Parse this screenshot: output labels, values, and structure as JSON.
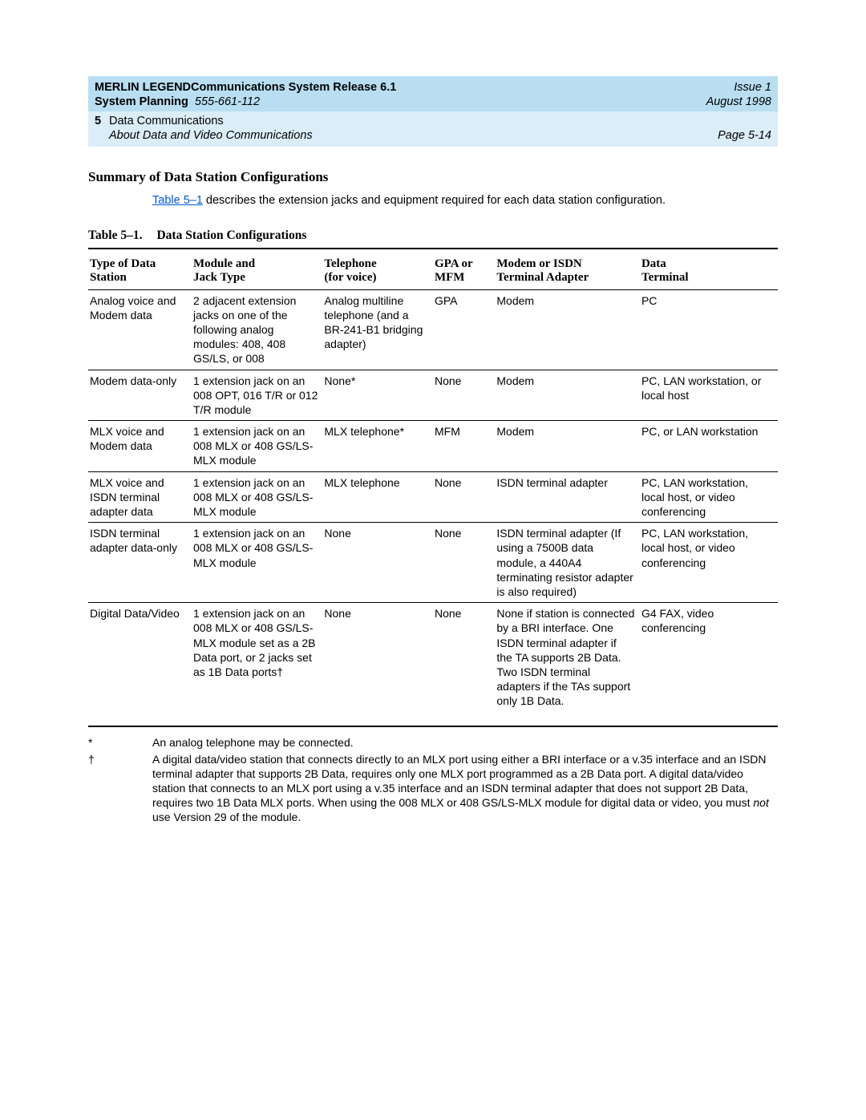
{
  "header": {
    "product_line_left": "MERLIN LEGENDCommunications System Release 6.1",
    "issue": "Issue 1",
    "system_planning": "System Planning",
    "doc_number": "555-661-112",
    "date": "August 1998"
  },
  "subheader": {
    "chapter_num": "5",
    "chapter_title": "Data Communications",
    "about": "About Data and Video Communications",
    "page": "Page 5-14"
  },
  "section_title": "Summary of Data Station Configurations",
  "intro": {
    "link_text": "Table 5–1",
    "rest": " describes the extension jacks and equipment required for each data station configuration."
  },
  "table_caption": {
    "num": "Table 5–1.",
    "title": "Data Station Configurations"
  },
  "columns": [
    {
      "l1": "Type of Data",
      "l2": "Station"
    },
    {
      "l1": "Module and",
      "l2": "Jack Type"
    },
    {
      "l1": "Telephone",
      "l2": "(for voice)"
    },
    {
      "l1": "GPA or",
      "l2": "MFM"
    },
    {
      "l1": "Modem or ISDN",
      "l2": "Terminal Adapter"
    },
    {
      "l1": "Data",
      "l2": "Terminal"
    }
  ],
  "rows": [
    {
      "c0": "Analog voice and Modem data",
      "c1": "2 adjacent extension jacks on one of the following analog modules: 408, 408 GS/LS, or 008",
      "c2": "Analog multiline telephone (and a BR-241-B1 bridging adapter)",
      "c3": "GPA",
      "c4": "Modem",
      "c5": "PC"
    },
    {
      "c0": "Modem data-only",
      "c1": "1 extension jack on an 008 OPT, 016 T/R or 012 T/R module",
      "c2": "None*",
      "c3": "None",
      "c4": "Modem",
      "c5": "PC, LAN workstation, or local host"
    },
    {
      "c0": "MLX voice and Modem data",
      "c1": "1 extension jack on an 008 MLX or 408 GS/LS-MLX module",
      "c2": "MLX telephone*",
      "c3": "MFM",
      "c4": "Modem",
      "c5": "PC, or LAN workstation"
    },
    {
      "c0": "MLX voice and ISDN terminal adapter data",
      "c1": "1 extension jack on an 008 MLX or 408 GS/LS-MLX module",
      "c2": "MLX telephone",
      "c3": "None",
      "c4": "ISDN terminal adapter",
      "c5": "PC, LAN workstation, local host, or video conferencing"
    },
    {
      "c0": "ISDN terminal adapter data-only",
      "c1": "1 extension jack on an 008 MLX or 408 GS/LS-MLX module",
      "c2": "None",
      "c3": "None",
      "c4": "ISDN terminal adapter (If using a 7500B data module, a 440A4 terminating resistor adapter is also required)",
      "c5": "PC, LAN workstation, local host, or video conferencing"
    },
    {
      "c0": "Digital Data/Video",
      "c1": "1 extension jack on an 008 MLX or 408 GS/LS-MLX module set as a 2B Data port, or 2 jacks set as 1B Data ports†",
      "c2": "None",
      "c3": "None",
      "c4": "None if station is connected by a BRI interface. One ISDN terminal adapter if the TA supports 2B Data. Two ISDN terminal adapters if the TAs support only 1B Data.",
      "c5": "G4 FAX, video conferencing"
    }
  ],
  "footnotes": [
    {
      "sym": "*",
      "text_plain": "An analog telephone may be connected."
    },
    {
      "sym": "†",
      "text_before_ital": "A digital data/video station that connects directly to an MLX port using either a BRI interface or a v.35 interface and an ISDN terminal adapter that supports 2B Data, requires only one MLX port programmed as a 2B Data port. A digital data/video station that connects to an MLX port using a v.35 interface and an ISDN terminal adapter that does not support 2B Data, requires two 1B Data MLX ports. When using the 008 MLX or 408 GS/LS-MLX module for digital data or video, you must ",
      "ital": "not",
      "text_after_ital": " use Version 29 of the module."
    }
  ],
  "col_widths": [
    "15%",
    "19%",
    "16%",
    "9%",
    "21%",
    "20%"
  ]
}
